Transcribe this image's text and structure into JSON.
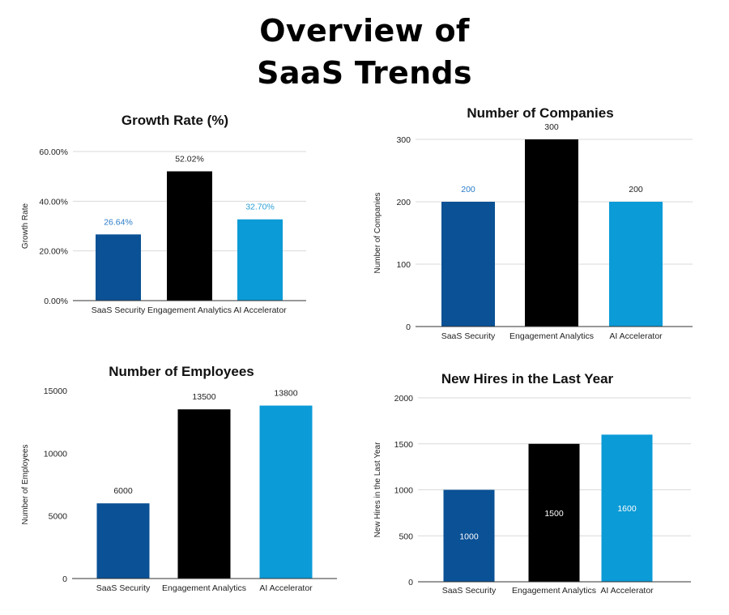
{
  "title_lines": [
    "Overview of",
    "SaaS Trends"
  ],
  "colors": {
    "SaaS Security": "#0a5196",
    "Engagement Analytics": "#000000",
    "AI Accelerator": "#0b9bd7"
  },
  "chart_data": [
    {
      "type": "bar",
      "title": "Growth Rate (%)",
      "ylabel": "Growth Rate",
      "categories": [
        "SaaS Security",
        "Engagement Analytics",
        "AI Accelerator"
      ],
      "values": [
        26.64,
        52.02,
        32.7
      ],
      "data_labels": [
        "26.64%",
        "52.02%",
        "32.70%"
      ],
      "label_position": "above",
      "label_colors": [
        "#2a7cc7",
        "#222222",
        "#2a9fd6"
      ],
      "yticks": [
        0,
        20,
        40,
        60
      ],
      "ytick_labels": [
        "0.00%",
        "20.00%",
        "40.00%",
        "60.00%"
      ],
      "ylim": [
        0,
        60
      ],
      "grid": true
    },
    {
      "type": "bar",
      "title": "Number of Companies",
      "ylabel": "Number of Companies",
      "categories": [
        "SaaS Security",
        "Engagement Analytics",
        "AI Accelerator"
      ],
      "values": [
        200,
        300,
        200
      ],
      "data_labels": [
        "200",
        "300",
        "200"
      ],
      "label_position": "above",
      "label_colors": [
        "#2a7cc7",
        "#222222",
        "#222222"
      ],
      "yticks": [
        0,
        100,
        200,
        300
      ],
      "ytick_labels": [
        "0",
        "100",
        "200",
        "300"
      ],
      "ylim": [
        0,
        300
      ],
      "grid": true
    },
    {
      "type": "bar",
      "title": "Number of Employees",
      "ylabel": "Number of Employees",
      "categories": [
        "SaaS Security",
        "Engagement Analytics",
        "AI Accelerator"
      ],
      "values": [
        6000,
        13500,
        13800
      ],
      "data_labels": [
        "6000",
        "13500",
        "13800"
      ],
      "label_position": "above",
      "label_colors": [
        "#222222",
        "#222222",
        "#222222"
      ],
      "yticks": [
        0,
        5000,
        10000,
        15000
      ],
      "ytick_labels": [
        "0",
        "5000",
        "10000",
        "15000"
      ],
      "ylim": [
        0,
        15000
      ],
      "grid": false
    },
    {
      "type": "bar",
      "title": "New Hires in the Last Year",
      "ylabel": "New Hires in the Last Year",
      "categories": [
        "SaaS Security",
        "Engagement Analytics",
        "AI Accelerator"
      ],
      "values": [
        1000,
        1500,
        1600
      ],
      "data_labels": [
        "1000",
        "1500",
        "1600"
      ],
      "label_position": "center",
      "label_colors": [
        "#ffffff",
        "#ffffff",
        "#ffffff"
      ],
      "yticks": [
        0,
        500,
        1000,
        1500,
        2000
      ],
      "ytick_labels": [
        "0",
        "500",
        "1000",
        "1500",
        "2000"
      ],
      "ylim": [
        0,
        2000
      ],
      "grid": true
    }
  ]
}
